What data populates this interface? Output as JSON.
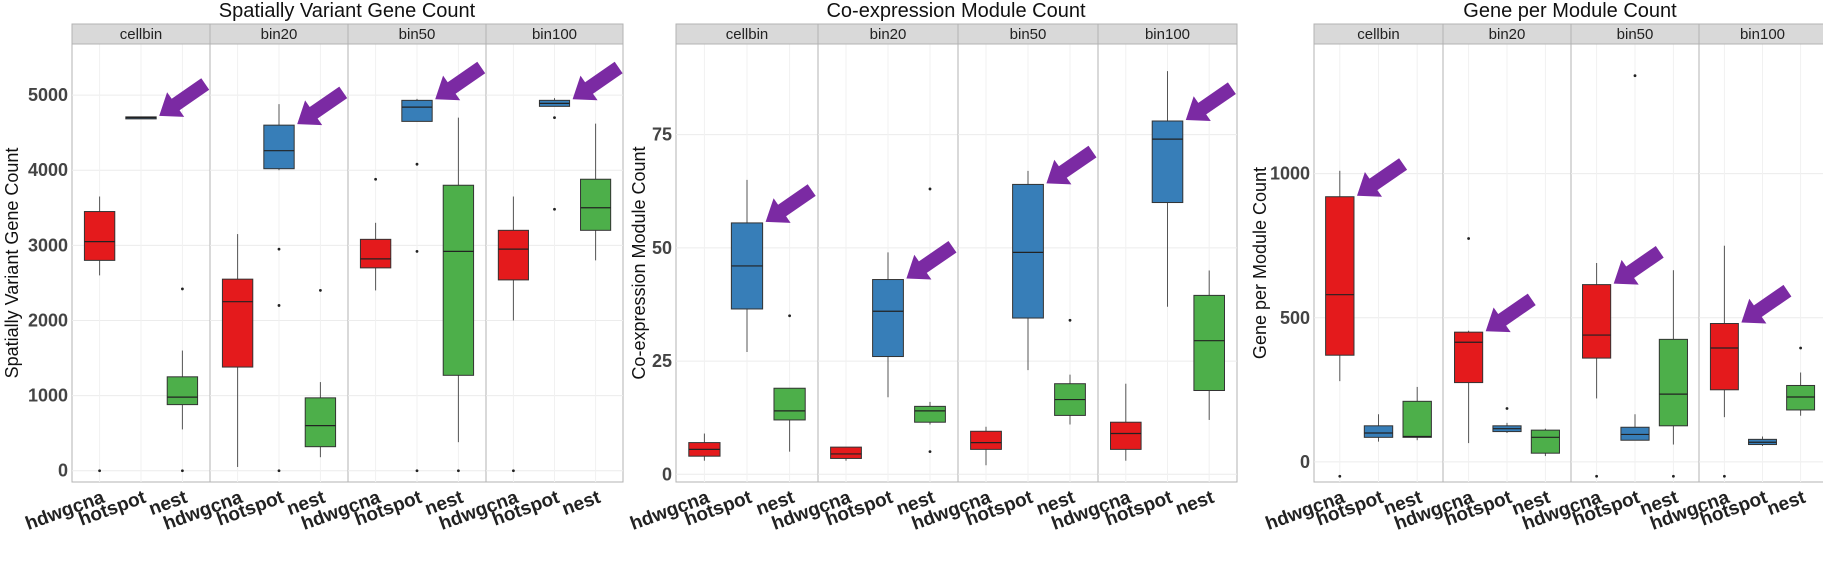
{
  "chart_data": [
    {
      "type": "box",
      "title": "Spatially Variant Gene Count",
      "ylabel": "Spatially Variant Gene Count",
      "xlabel": "",
      "ylim": [
        -150,
        5680
      ],
      "yticks": [
        0,
        1000,
        2000,
        3000,
        4000,
        5000
      ],
      "facets": [
        "cellbin",
        "bin20",
        "bin50",
        "bin100"
      ],
      "categories": [
        "hdwgcna",
        "hotspot",
        "nest"
      ],
      "colors": {
        "hdwgcna": "#e41a1c",
        "hotspot": "#377eb8",
        "nest": "#4daf4a"
      },
      "highlight": "hotspot",
      "grid": true,
      "boxes": {
        "cellbin": [
          {
            "category": "hdwgcna",
            "min": 2600,
            "q1": 2800,
            "median": 3050,
            "q3": 3450,
            "max": 3650,
            "outliers": [
              0
            ]
          },
          {
            "category": "hotspot",
            "min": 4690,
            "q1": 4690,
            "median": 4700,
            "q3": 4710,
            "max": 4710,
            "outliers": []
          },
          {
            "category": "nest",
            "min": 550,
            "q1": 880,
            "median": 980,
            "q3": 1250,
            "max": 1600,
            "outliers": [
              2420,
              0
            ]
          }
        ],
        "bin20": [
          {
            "category": "hdwgcna",
            "min": 50,
            "q1": 1380,
            "median": 2250,
            "q3": 2550,
            "max": 3150,
            "outliers": []
          },
          {
            "category": "hotspot",
            "min": 4000,
            "q1": 4020,
            "median": 4260,
            "q3": 4600,
            "max": 4880,
            "outliers": [
              2950,
              2200,
              0
            ]
          },
          {
            "category": "nest",
            "min": 180,
            "q1": 320,
            "median": 600,
            "q3": 970,
            "max": 1180,
            "outliers": [
              2400
            ]
          }
        ],
        "bin50": [
          {
            "category": "hdwgcna",
            "min": 2400,
            "q1": 2700,
            "median": 2820,
            "q3": 3080,
            "max": 3300,
            "outliers": [
              3880
            ]
          },
          {
            "category": "hotspot",
            "min": 4650,
            "q1": 4650,
            "median": 4840,
            "q3": 4930,
            "max": 4950,
            "outliers": [
              4080,
              2920,
              0
            ]
          },
          {
            "category": "nest",
            "min": 380,
            "q1": 1270,
            "median": 2920,
            "q3": 3800,
            "max": 4700,
            "outliers": [
              0
            ]
          }
        ],
        "bin100": [
          {
            "category": "hdwgcna",
            "min": 2000,
            "q1": 2540,
            "median": 2950,
            "q3": 3200,
            "max": 3650,
            "outliers": [
              0
            ]
          },
          {
            "category": "hotspot",
            "min": 4850,
            "q1": 4850,
            "median": 4890,
            "q3": 4930,
            "max": 4960,
            "outliers": [
              4700,
              3480
            ]
          },
          {
            "category": "nest",
            "min": 2800,
            "q1": 3200,
            "median": 3500,
            "q3": 3880,
            "max": 4620,
            "outliers": []
          }
        ]
      }
    },
    {
      "type": "box",
      "title": "Co-expression Module Count",
      "ylabel": "Co-expression Module Count",
      "xlabel": "",
      "ylim": [
        -1.7,
        95
      ],
      "yticks": [
        0,
        25,
        50,
        75
      ],
      "facets": [
        "cellbin",
        "bin20",
        "bin50",
        "bin100"
      ],
      "categories": [
        "hdwgcna",
        "hotspot",
        "nest"
      ],
      "colors": {
        "hdwgcna": "#e41a1c",
        "hotspot": "#377eb8",
        "nest": "#4daf4a"
      },
      "highlight": "hotspot",
      "grid": true,
      "boxes": {
        "cellbin": [
          {
            "category": "hdwgcna",
            "min": 3,
            "q1": 4,
            "median": 5.5,
            "q3": 7,
            "max": 9,
            "outliers": []
          },
          {
            "category": "hotspot",
            "min": 27,
            "q1": 36.5,
            "median": 46,
            "q3": 55.5,
            "max": 65,
            "outliers": []
          },
          {
            "category": "nest",
            "min": 5,
            "q1": 12,
            "median": 14,
            "q3": 19,
            "max": 19,
            "outliers": [
              35
            ]
          }
        ],
        "bin20": [
          {
            "category": "hdwgcna",
            "min": 3,
            "q1": 3.5,
            "median": 4.5,
            "q3": 6,
            "max": 6,
            "outliers": []
          },
          {
            "category": "hotspot",
            "min": 17,
            "q1": 26,
            "median": 36,
            "q3": 43,
            "max": 49,
            "outliers": []
          },
          {
            "category": "nest",
            "min": 11,
            "q1": 11.5,
            "median": 14,
            "q3": 15,
            "max": 16,
            "outliers": [
              63,
              5
            ]
          }
        ],
        "bin50": [
          {
            "category": "hdwgcna",
            "min": 2,
            "q1": 5.5,
            "median": 7,
            "q3": 9.5,
            "max": 10.5,
            "outliers": []
          },
          {
            "category": "hotspot",
            "min": 23,
            "q1": 34.5,
            "median": 49,
            "q3": 64,
            "max": 67,
            "outliers": []
          },
          {
            "category": "nest",
            "min": 11,
            "q1": 13,
            "median": 16.5,
            "q3": 20,
            "max": 22,
            "outliers": [
              34
            ]
          }
        ],
        "bin100": [
          {
            "category": "hdwgcna",
            "min": 3,
            "q1": 5.5,
            "median": 9,
            "q3": 11.5,
            "max": 20,
            "outliers": []
          },
          {
            "category": "hotspot",
            "min": 37,
            "q1": 60,
            "median": 74,
            "q3": 78,
            "max": 89,
            "outliers": []
          },
          {
            "category": "nest",
            "min": 12,
            "q1": 18.5,
            "median": 29.5,
            "q3": 39.5,
            "max": 45,
            "outliers": []
          }
        ]
      }
    },
    {
      "type": "box",
      "title": "Gene per Module Count",
      "ylabel": "Gene per Module Count",
      "xlabel": "",
      "ylim": [
        -70,
        1450
      ],
      "yticks": [
        0,
        500,
        1000
      ],
      "facets": [
        "cellbin",
        "bin20",
        "bin50",
        "bin100"
      ],
      "categories": [
        "hdwgcna",
        "hotspot",
        "nest"
      ],
      "colors": {
        "hdwgcna": "#e41a1c",
        "hotspot": "#377eb8",
        "nest": "#4daf4a"
      },
      "highlight": "hdwgcna",
      "grid": true,
      "boxes": {
        "cellbin": [
          {
            "category": "hdwgcna",
            "min": 280,
            "q1": 370,
            "median": 580,
            "q3": 920,
            "max": 1010,
            "outliers": [
              -50
            ]
          },
          {
            "category": "hotspot",
            "min": 70,
            "q1": 85,
            "median": 100,
            "q3": 125,
            "max": 165,
            "outliers": []
          },
          {
            "category": "nest",
            "min": 75,
            "q1": 85,
            "median": 88,
            "q3": 210,
            "max": 260,
            "outliers": []
          }
        ],
        "bin20": [
          {
            "category": "hdwgcna",
            "min": 65,
            "q1": 275,
            "median": 415,
            "q3": 450,
            "max": 455,
            "outliers": [
              775
            ]
          },
          {
            "category": "hotspot",
            "min": 100,
            "q1": 105,
            "median": 115,
            "q3": 125,
            "max": 135,
            "outliers": [
              185
            ]
          },
          {
            "category": "nest",
            "min": 20,
            "q1": 30,
            "median": 85,
            "q3": 110,
            "max": 115,
            "outliers": []
          }
        ],
        "bin50": [
          {
            "category": "hdwgcna",
            "min": 220,
            "q1": 360,
            "median": 440,
            "q3": 615,
            "max": 690,
            "outliers": [
              -50
            ]
          },
          {
            "category": "hotspot",
            "min": 75,
            "q1": 75,
            "median": 95,
            "q3": 120,
            "max": 165,
            "outliers": [
              1340
            ]
          },
          {
            "category": "nest",
            "min": 60,
            "q1": 125,
            "median": 235,
            "q3": 425,
            "max": 665,
            "outliers": [
              -50
            ]
          }
        ],
        "bin100": [
          {
            "category": "hdwgcna",
            "min": 155,
            "q1": 250,
            "median": 395,
            "q3": 480,
            "max": 750,
            "outliers": [
              -50
            ]
          },
          {
            "category": "hotspot",
            "min": 55,
            "q1": 60,
            "median": 68,
            "q3": 78,
            "max": 88,
            "outliers": []
          },
          {
            "category": "nest",
            "min": 160,
            "q1": 180,
            "median": 225,
            "q3": 265,
            "max": 310,
            "outliers": [
              395
            ]
          }
        ]
      }
    }
  ]
}
